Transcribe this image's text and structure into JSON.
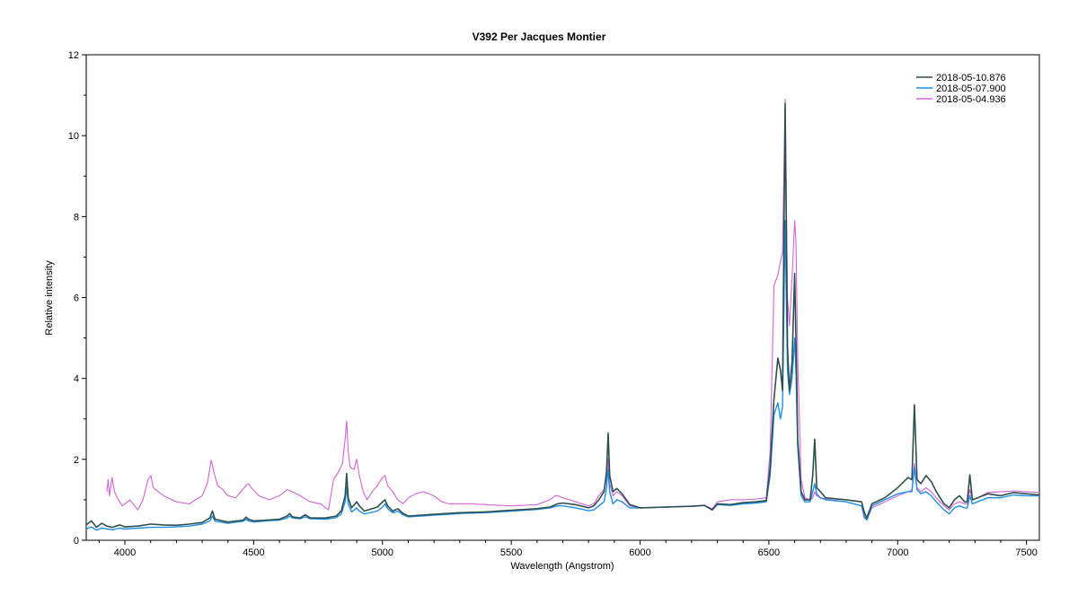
{
  "chart_data": {
    "type": "line",
    "title": "V392 Per    Jacques Montier",
    "xlabel": "Wavelength (Angstrom)",
    "ylabel": "Relative intensity",
    "xlim": [
      3850,
      7550
    ],
    "ylim": [
      0,
      12
    ],
    "xticks": [
      "4000",
      "4500",
      "5000",
      "5500",
      "6000",
      "6500",
      "7000",
      "7500"
    ],
    "yticks": [
      "0",
      "2",
      "4",
      "6",
      "8",
      "10",
      "12"
    ],
    "grid": false,
    "legend_position": "top-right",
    "series": [
      {
        "name": "2018-05-10.876",
        "color": "#2f4f4f",
        "x": [
          3850,
          3870,
          3890,
          3910,
          3930,
          3950,
          3980,
          4000,
          4050,
          4100,
          4150,
          4200,
          4250,
          4300,
          4330,
          4340,
          4350,
          4400,
          4460,
          4470,
          4480,
          4500,
          4550,
          4600,
          4630,
          4640,
          4650,
          4680,
          4700,
          4720,
          4780,
          4820,
          4840,
          4855,
          4861,
          4867,
          4880,
          4900,
          4910,
          4930,
          4980,
          5000,
          5010,
          5020,
          5040,
          5060,
          5080,
          5100,
          5150,
          5200,
          5300,
          5400,
          5500,
          5600,
          5650,
          5680,
          5700,
          5750,
          5800,
          5820,
          5840,
          5860,
          5870,
          5876,
          5882,
          5895,
          5910,
          5930,
          5960,
          6000,
          6100,
          6200,
          6250,
          6280,
          6300,
          6350,
          6400,
          6450,
          6490,
          6505,
          6520,
          6535,
          6545,
          6553,
          6563,
          6572,
          6580,
          6590,
          6600,
          6605,
          6612,
          6625,
          6640,
          6660,
          6670,
          6678,
          6686,
          6700,
          6720,
          6800,
          6860,
          6870,
          6880,
          6900,
          6950,
          7000,
          7040,
          7055,
          7065,
          7075,
          7090,
          7110,
          7130,
          7150,
          7180,
          7200,
          7220,
          7240,
          7260,
          7270,
          7280,
          7290,
          7310,
          7350,
          7400,
          7450,
          7500,
          7550
        ],
        "values": [
          0.38,
          0.48,
          0.32,
          0.42,
          0.35,
          0.32,
          0.38,
          0.33,
          0.35,
          0.4,
          0.38,
          0.37,
          0.4,
          0.44,
          0.55,
          0.72,
          0.52,
          0.45,
          0.5,
          0.57,
          0.52,
          0.48,
          0.5,
          0.52,
          0.6,
          0.66,
          0.58,
          0.55,
          0.63,
          0.55,
          0.55,
          0.6,
          0.72,
          1.1,
          1.65,
          1.05,
          0.8,
          0.95,
          0.85,
          0.72,
          0.82,
          0.95,
          1.0,
          0.85,
          0.72,
          0.78,
          0.66,
          0.6,
          0.62,
          0.64,
          0.68,
          0.7,
          0.74,
          0.78,
          0.82,
          0.9,
          0.92,
          0.88,
          0.8,
          0.85,
          1.0,
          1.2,
          1.7,
          2.65,
          1.6,
          1.2,
          1.28,
          1.15,
          0.88,
          0.8,
          0.82,
          0.84,
          0.86,
          0.75,
          0.9,
          0.88,
          0.93,
          0.95,
          0.98,
          1.8,
          3.5,
          4.5,
          4.2,
          3.7,
          10.8,
          4.8,
          3.7,
          4.4,
          6.6,
          5.0,
          2.5,
          1.2,
          1.0,
          1.0,
          1.6,
          2.5,
          1.3,
          1.2,
          1.05,
          1.0,
          0.95,
          0.7,
          0.55,
          0.9,
          1.05,
          1.3,
          1.55,
          1.5,
          3.35,
          1.5,
          1.4,
          1.6,
          1.45,
          1.2,
          0.9,
          0.8,
          1.0,
          1.1,
          0.95,
          0.95,
          1.62,
          1.0,
          1.05,
          1.15,
          1.1,
          1.18,
          1.15,
          1.12
        ],
        "stroke_width": 1.6
      },
      {
        "name": "2018-05-07.900",
        "color": "#1e8fe8",
        "x": [
          3850,
          3870,
          3890,
          3910,
          3930,
          3950,
          3980,
          4000,
          4050,
          4100,
          4150,
          4200,
          4250,
          4300,
          4330,
          4340,
          4350,
          4400,
          4460,
          4470,
          4480,
          4500,
          4550,
          4600,
          4630,
          4640,
          4650,
          4680,
          4700,
          4720,
          4780,
          4820,
          4840,
          4855,
          4861,
          4867,
          4880,
          4900,
          4910,
          4930,
          4980,
          5000,
          5010,
          5020,
          5040,
          5060,
          5080,
          5100,
          5150,
          5200,
          5300,
          5400,
          5500,
          5600,
          5650,
          5680,
          5700,
          5750,
          5800,
          5820,
          5840,
          5860,
          5870,
          5876,
          5882,
          5895,
          5910,
          5930,
          5960,
          6000,
          6100,
          6200,
          6250,
          6280,
          6300,
          6350,
          6400,
          6450,
          6490,
          6505,
          6520,
          6535,
          6545,
          6553,
          6563,
          6572,
          6580,
          6590,
          6600,
          6605,
          6612,
          6625,
          6640,
          6660,
          6670,
          6678,
          6686,
          6700,
          6720,
          6800,
          6860,
          6870,
          6880,
          6900,
          6950,
          7000,
          7040,
          7055,
          7065,
          7075,
          7090,
          7110,
          7130,
          7150,
          7180,
          7200,
          7220,
          7240,
          7260,
          7270,
          7280,
          7290,
          7310,
          7350,
          7400,
          7450,
          7500,
          7550
        ],
        "values": [
          0.28,
          0.33,
          0.25,
          0.3,
          0.28,
          0.26,
          0.3,
          0.28,
          0.3,
          0.32,
          0.32,
          0.33,
          0.35,
          0.4,
          0.48,
          0.6,
          0.47,
          0.42,
          0.47,
          0.52,
          0.48,
          0.45,
          0.48,
          0.5,
          0.55,
          0.6,
          0.55,
          0.53,
          0.58,
          0.53,
          0.52,
          0.56,
          0.65,
          0.95,
          1.3,
          0.9,
          0.7,
          0.8,
          0.72,
          0.65,
          0.72,
          0.82,
          0.9,
          0.78,
          0.68,
          0.72,
          0.63,
          0.58,
          0.6,
          0.62,
          0.66,
          0.68,
          0.72,
          0.76,
          0.8,
          0.85,
          0.85,
          0.8,
          0.73,
          0.75,
          0.85,
          0.95,
          1.3,
          1.75,
          1.2,
          0.9,
          1.0,
          0.95,
          0.8,
          0.8,
          0.82,
          0.84,
          0.86,
          0.75,
          0.88,
          0.86,
          0.9,
          0.92,
          0.95,
          1.6,
          3.1,
          3.4,
          3.0,
          3.3,
          7.9,
          4.2,
          3.6,
          4.0,
          5.0,
          4.2,
          2.3,
          1.1,
          0.95,
          0.95,
          1.2,
          1.4,
          1.15,
          1.05,
          1.0,
          0.95,
          0.85,
          0.6,
          0.5,
          0.85,
          1.0,
          1.15,
          1.2,
          1.2,
          1.8,
          1.25,
          1.15,
          1.2,
          1.1,
          0.95,
          0.75,
          0.65,
          0.8,
          0.85,
          0.8,
          0.8,
          1.1,
          0.9,
          0.95,
          1.05,
          1.05,
          1.12,
          1.1,
          1.1
        ],
        "stroke_width": 1.4
      },
      {
        "name": "2018-05-04.936",
        "color": "#d264d8",
        "x": [
          3930,
          3935,
          3940,
          3950,
          3960,
          3970,
          3980,
          3990,
          4000,
          4020,
          4050,
          4070,
          4090,
          4101,
          4110,
          4130,
          4150,
          4200,
          4250,
          4300,
          4320,
          4335,
          4340,
          4345,
          4360,
          4380,
          4400,
          4430,
          4450,
          4470,
          4480,
          4490,
          4520,
          4560,
          4600,
          4630,
          4650,
          4680,
          4720,
          4760,
          4790,
          4810,
          4830,
          4845,
          4855,
          4861,
          4867,
          4875,
          4890,
          4900,
          4910,
          4925,
          4940,
          4960,
          4980,
          5000,
          5010,
          5020,
          5040,
          5060,
          5080,
          5100,
          5130,
          5160,
          5180,
          5200,
          5230,
          5260,
          5300,
          5350,
          5400,
          5500,
          5600,
          5650,
          5670,
          5680,
          5700,
          5750,
          5800,
          5820,
          5840,
          5860,
          5870,
          5876,
          5882,
          5895,
          5910,
          5930,
          5960,
          6000,
          6100,
          6200,
          6250,
          6280,
          6300,
          6350,
          6400,
          6450,
          6490,
          6505,
          6520,
          6535,
          6545,
          6553,
          6563,
          6572,
          6580,
          6590,
          6600,
          6605,
          6612,
          6625,
          6640,
          6660,
          6670,
          6678,
          6686,
          6700,
          6720,
          6800,
          6860,
          6870,
          6880,
          6900,
          6950,
          7000,
          7040,
          7055,
          7065,
          7075,
          7090,
          7110,
          7130,
          7150,
          7180,
          7200,
          7220,
          7240,
          7260,
          7270,
          7280,
          7290,
          7310,
          7350,
          7400,
          7450,
          7500,
          7550
        ],
        "values": [
          1.2,
          1.5,
          1.1,
          1.55,
          1.2,
          1.05,
          0.95,
          0.85,
          0.9,
          1.0,
          0.75,
          1.0,
          1.5,
          1.6,
          1.3,
          1.2,
          1.1,
          0.95,
          0.9,
          1.1,
          1.4,
          1.98,
          1.85,
          1.7,
          1.35,
          1.25,
          1.1,
          1.05,
          1.2,
          1.35,
          1.4,
          1.3,
          1.1,
          1.0,
          1.1,
          1.25,
          1.2,
          1.1,
          0.95,
          0.9,
          0.75,
          1.5,
          1.7,
          1.9,
          2.5,
          2.95,
          2.2,
          1.8,
          1.75,
          2.0,
          1.6,
          1.2,
          1.0,
          1.2,
          1.35,
          1.55,
          1.6,
          1.35,
          1.2,
          1.0,
          0.9,
          1.05,
          1.15,
          1.2,
          1.15,
          1.1,
          0.95,
          0.9,
          0.9,
          0.9,
          0.88,
          0.85,
          0.88,
          1.0,
          1.1,
          1.1,
          1.05,
          0.95,
          0.85,
          0.9,
          1.1,
          1.25,
          1.5,
          2.0,
          1.4,
          1.1,
          1.2,
          1.1,
          0.85,
          0.8,
          0.82,
          0.84,
          0.86,
          0.78,
          0.95,
          1.0,
          1.0,
          1.02,
          1.05,
          2.2,
          6.3,
          6.55,
          6.9,
          7.1,
          10.9,
          6.0,
          5.3,
          6.5,
          7.9,
          7.4,
          4.5,
          1.5,
          1.05,
          1.0,
          1.05,
          1.2,
          1.1,
          1.05,
          1.02,
          0.95,
          0.85,
          0.55,
          0.5,
          0.8,
          0.95,
          1.1,
          1.2,
          1.25,
          1.9,
          1.3,
          1.2,
          1.3,
          1.2,
          1.05,
          0.85,
          0.75,
          0.9,
          0.95,
          0.9,
          0.9,
          1.25,
          1.0,
          1.05,
          1.18,
          1.2,
          1.22,
          1.2,
          1.18
        ],
        "stroke_width": 1.1
      }
    ]
  }
}
